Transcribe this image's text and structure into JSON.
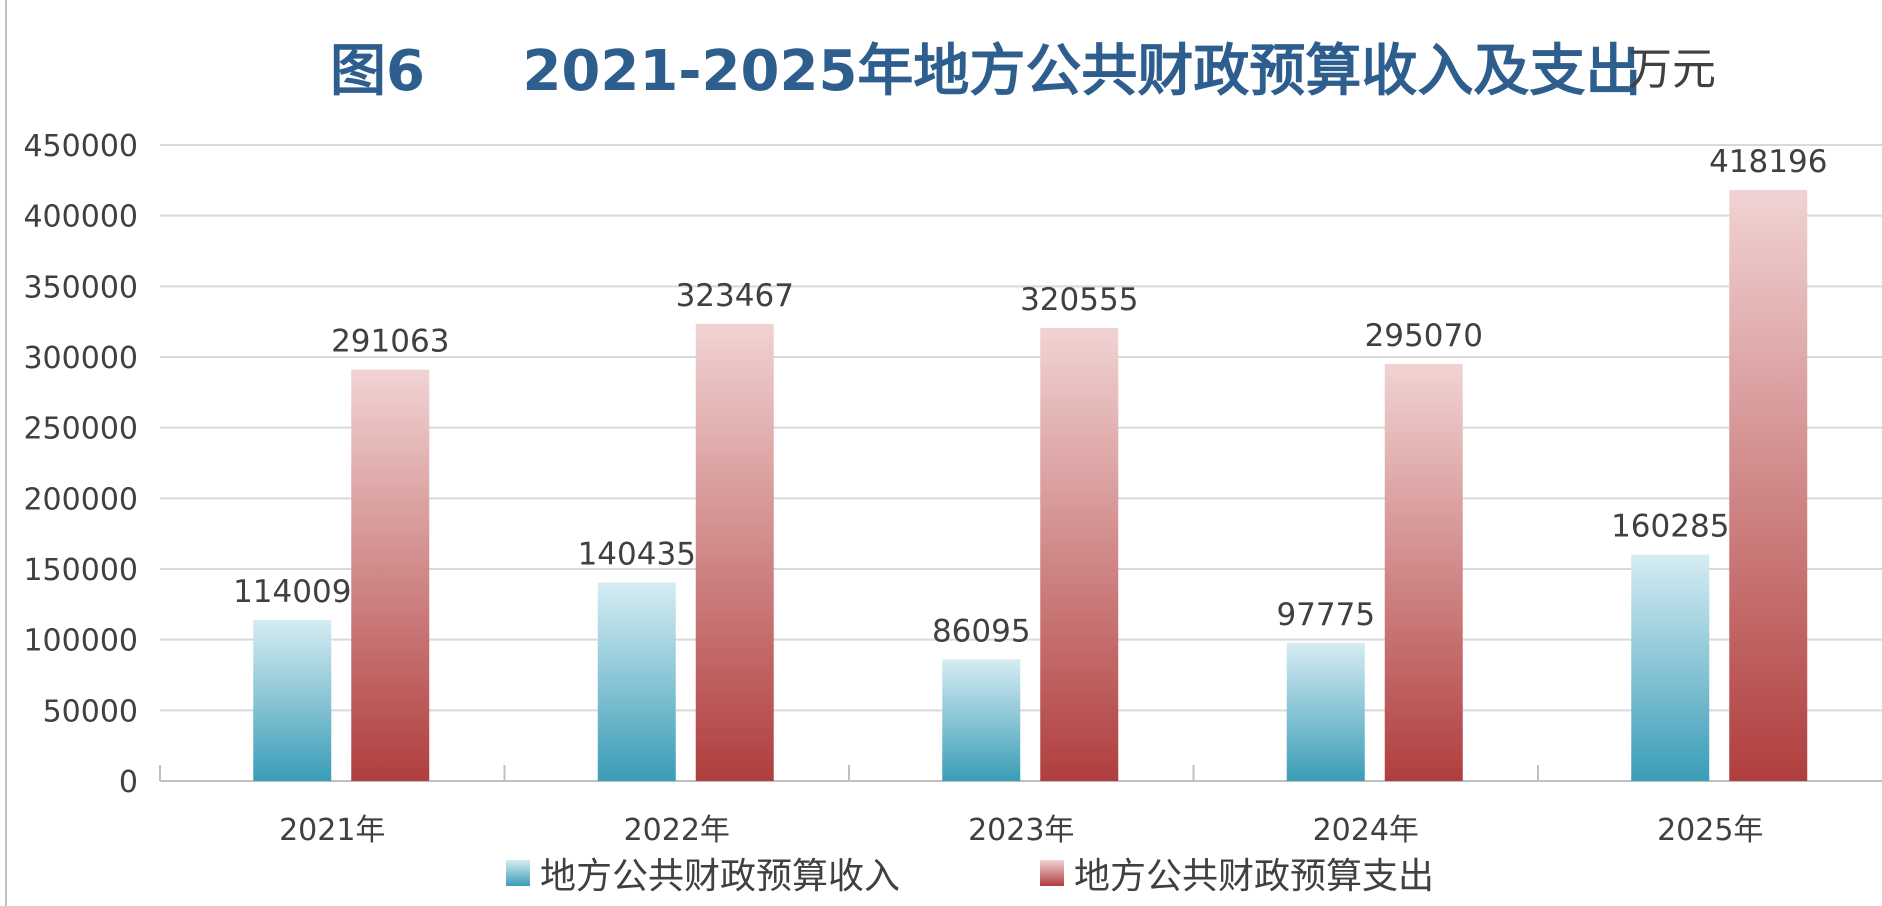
{
  "chart_data": {
    "type": "bar",
    "title": "图6     2021-2025年地方公共财政预算收入及支出",
    "unit": "万元",
    "categories": [
      "2021年",
      "2022年",
      "2023年",
      "2024年",
      "2025年"
    ],
    "series": [
      {
        "name": "地方公共财政预算收入",
        "values": [
          114009,
          140435,
          86095,
          97775,
          160285
        ],
        "color_top": "#d6ecf3",
        "color_bottom": "#3a9db7"
      },
      {
        "name": "地方公共财政预算支出",
        "values": [
          291063,
          323467,
          320555,
          295070,
          418196
        ],
        "color_top": "#f1d3d3",
        "color_bottom": "#b03e3e"
      }
    ],
    "ylim": [
      0,
      450000
    ],
    "yticks": [
      "0",
      "50000",
      "100000",
      "150000",
      "200000",
      "250000",
      "300000",
      "350000",
      "400000",
      "450000"
    ],
    "ytick_values": [
      0,
      50000,
      100000,
      150000,
      200000,
      250000,
      300000,
      350000,
      400000,
      450000
    ],
    "grid": true,
    "legend_position": "bottom",
    "colors": {
      "title": "#2e5e8e",
      "grid": "#d9d9d9",
      "axis": "#bfbfbf",
      "text": "#404040",
      "border": "#bfbfbf"
    }
  }
}
